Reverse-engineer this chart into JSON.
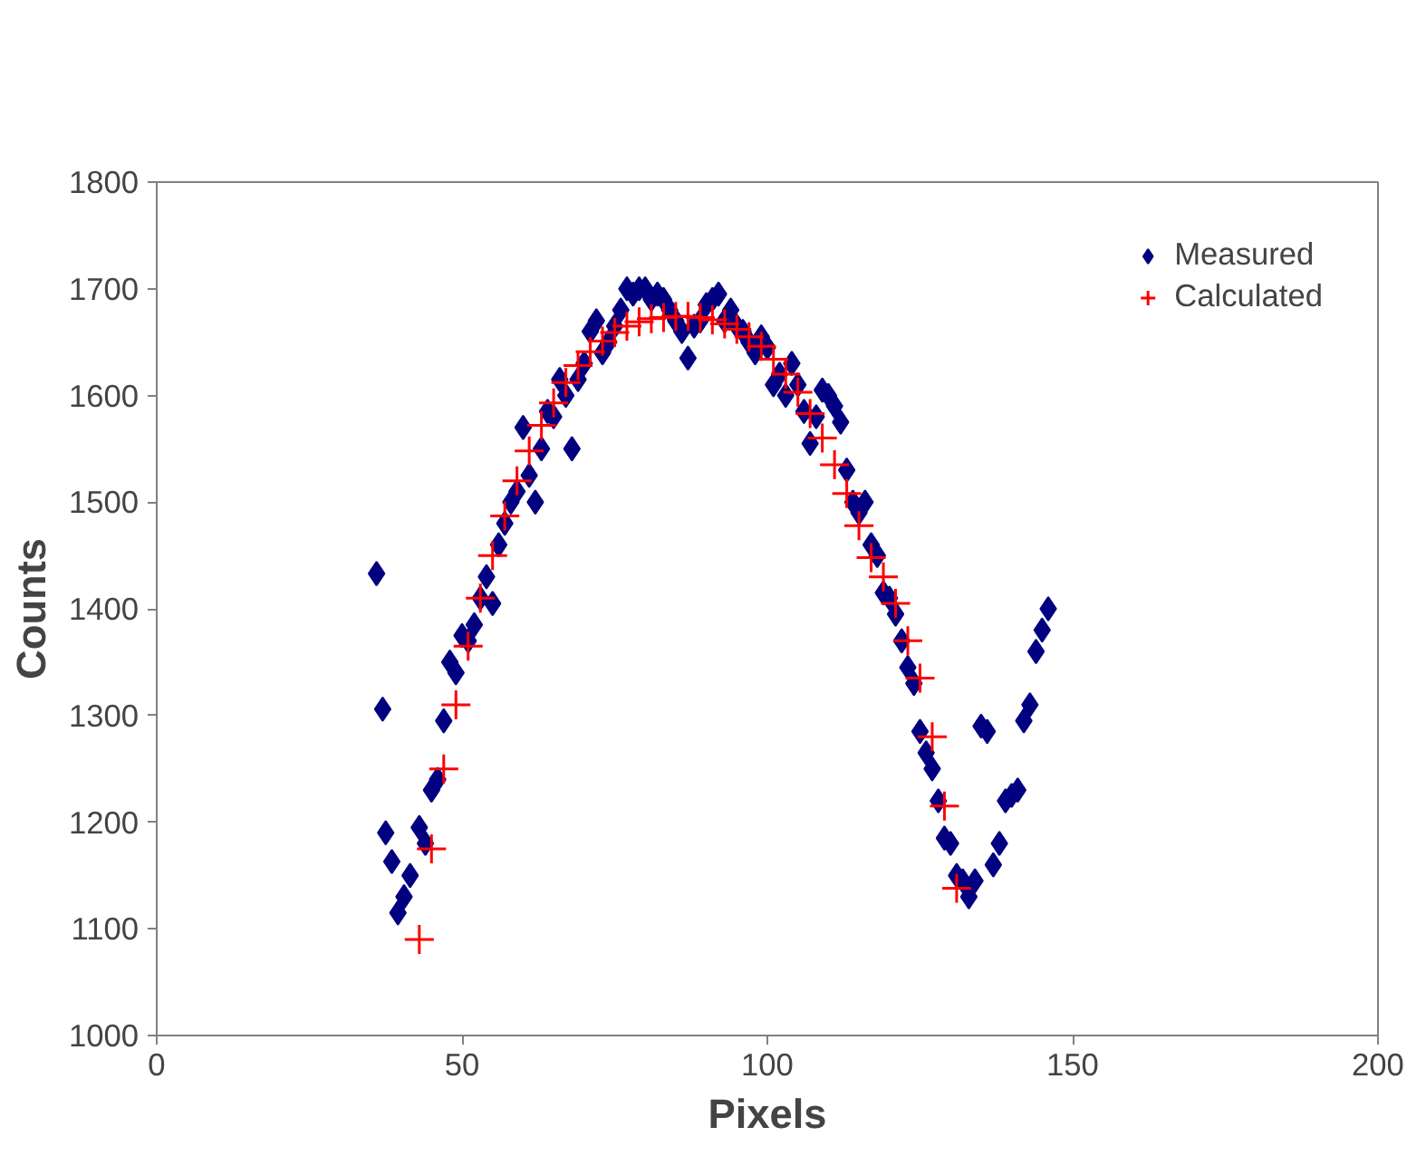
{
  "chart_data": {
    "type": "scatter",
    "xlabel": "Pixels",
    "ylabel": "Counts",
    "xlim": [
      0,
      200
    ],
    "xticks": [
      0,
      50,
      100,
      150,
      200
    ],
    "ylim": [
      1000,
      1800
    ],
    "yticks": [
      1000,
      1100,
      1200,
      1300,
      1400,
      1500,
      1600,
      1700,
      1800
    ],
    "grid": false,
    "legend": "top right",
    "series": [
      {
        "name": "Measured",
        "color": "#000080",
        "marker": "diamond",
        "x": [
          36,
          37,
          37.5,
          38.5,
          39.5,
          40.5,
          41.5,
          43,
          44,
          45,
          46,
          47,
          48,
          49,
          50,
          51,
          52,
          53,
          54,
          55,
          56,
          57,
          58,
          59,
          60,
          61,
          62,
          63,
          64,
          65,
          66,
          67,
          68,
          69,
          70,
          71,
          72,
          73,
          74,
          75,
          76,
          77,
          78,
          79,
          80,
          81,
          82,
          83,
          84,
          85,
          86,
          87,
          88,
          89,
          90,
          91,
          92,
          93,
          94,
          95,
          96,
          97,
          98,
          99,
          100,
          101,
          102,
          103,
          104,
          105,
          106,
          107,
          108,
          109,
          110,
          111,
          112,
          113,
          114,
          115,
          116,
          117,
          118,
          119,
          120,
          121,
          122,
          123,
          124,
          125,
          126,
          127,
          128,
          129,
          130,
          131,
          132,
          133,
          134,
          135,
          136,
          137,
          138,
          139,
          140,
          141,
          142,
          143,
          144,
          145,
          146
        ],
        "values": [
          1433,
          1306,
          1190,
          1163,
          1115,
          1130,
          1150,
          1195,
          1180,
          1230,
          1240,
          1295,
          1350,
          1340,
          1375,
          1370,
          1385,
          1410,
          1430,
          1405,
          1460,
          1480,
          1500,
          1510,
          1570,
          1525,
          1500,
          1550,
          1585,
          1580,
          1615,
          1600,
          1550,
          1615,
          1630,
          1660,
          1670,
          1640,
          1650,
          1665,
          1680,
          1700,
          1695,
          1700,
          1700,
          1690,
          1695,
          1690,
          1680,
          1670,
          1660,
          1635,
          1665,
          1670,
          1685,
          1690,
          1695,
          1670,
          1680,
          1665,
          1660,
          1650,
          1640,
          1655,
          1645,
          1610,
          1620,
          1600,
          1630,
          1610,
          1585,
          1555,
          1580,
          1605,
          1600,
          1590,
          1575,
          1530,
          1500,
          1490,
          1500,
          1460,
          1450,
          1415,
          1410,
          1395,
          1370,
          1345,
          1330,
          1285,
          1265,
          1250,
          1220,
          1185,
          1180,
          1150,
          1145,
          1130,
          1145,
          1290,
          1285,
          1160,
          1180,
          1220,
          1225,
          1230,
          1295,
          1310,
          1360,
          1380,
          1400
        ]
      },
      {
        "name": "Calculated",
        "color": "#ff0000",
        "marker": "cross",
        "x": [
          43,
          45,
          47,
          49,
          51,
          53,
          55,
          57,
          59,
          61,
          63,
          65,
          67,
          69,
          71,
          73,
          75,
          77,
          79,
          81,
          83,
          85,
          87,
          89,
          91,
          93,
          95,
          97,
          99,
          101,
          103,
          105,
          107,
          109,
          111,
          113,
          115,
          117,
          119,
          121,
          123,
          125,
          127,
          129,
          131
        ],
        "values": [
          1090,
          1175,
          1250,
          1310,
          1365,
          1410,
          1450,
          1487,
          1520,
          1548,
          1572,
          1593,
          1612,
          1628,
          1641,
          1651,
          1659,
          1665,
          1669,
          1672,
          1673,
          1674,
          1674,
          1673,
          1671,
          1667,
          1662,
          1655,
          1646,
          1634,
          1620,
          1603,
          1583,
          1560,
          1535,
          1508,
          1478,
          1448,
          1430,
          1405,
          1370,
          1335,
          1280,
          1215,
          1138
        ]
      }
    ]
  }
}
